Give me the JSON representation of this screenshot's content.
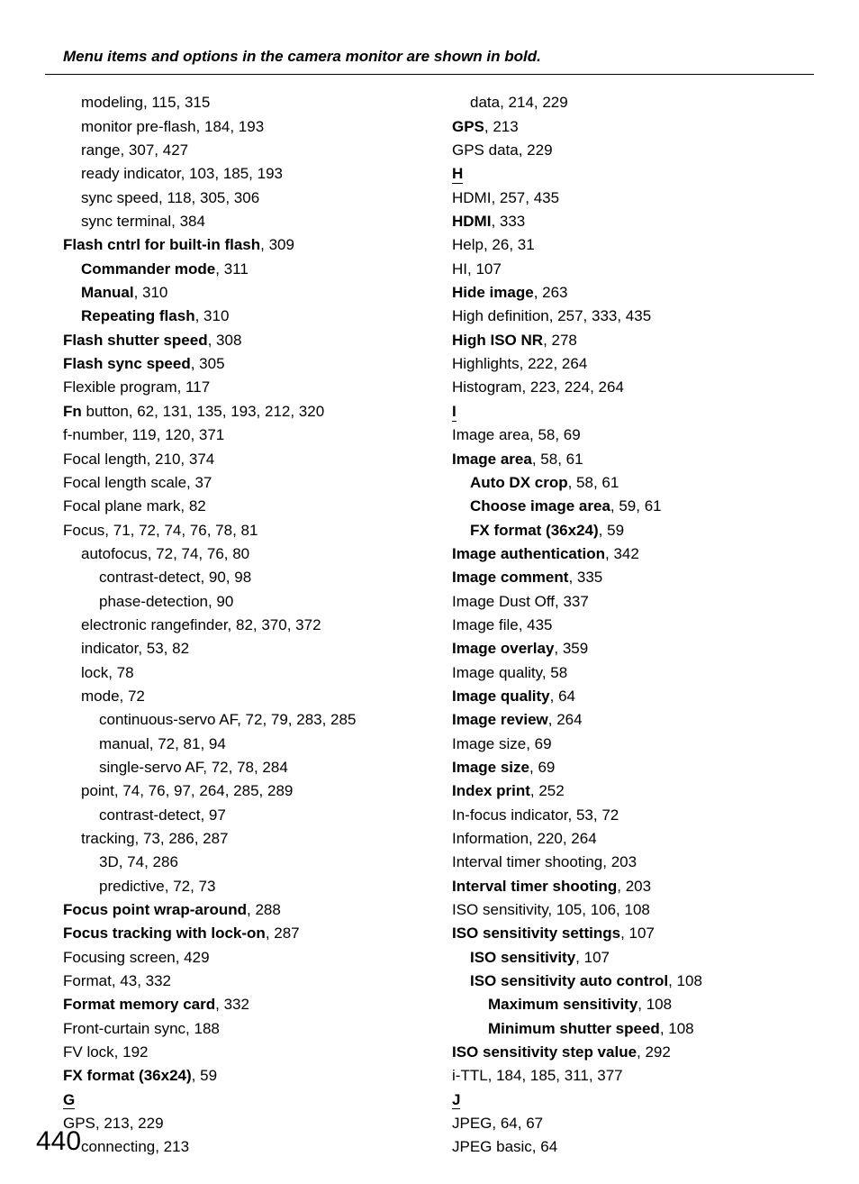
{
  "header_note": "Menu items and options in the camera monitor are shown in bold.",
  "page_number": "440",
  "left": [
    {
      "t": "modeling, 115, 315",
      "i": 1
    },
    {
      "t": "monitor pre-flash, 184, 193",
      "i": 1
    },
    {
      "t": "range, 307, 427",
      "i": 1
    },
    {
      "t": "ready indicator, 103, 185, 193",
      "i": 1
    },
    {
      "t": "sync speed, 118, 305, 306",
      "i": 1
    },
    {
      "t": "sync terminal, 384",
      "i": 1
    },
    {
      "pre": "Flash cntrl for built-in flash",
      "t": ", 309",
      "i": 0
    },
    {
      "pre": "Commander mode",
      "t": ", 311",
      "i": 1
    },
    {
      "pre": "Manual",
      "t": ", 310",
      "i": 1
    },
    {
      "pre": "Repeating flash",
      "t": ", 310",
      "i": 1
    },
    {
      "pre": "Flash shutter speed",
      "t": ", 308",
      "i": 0
    },
    {
      "pre": "Flash sync speed",
      "t": ", 305",
      "i": 0
    },
    {
      "t": "Flexible program, 117",
      "i": 0
    },
    {
      "fn": "Fn",
      "t": " button, 62, 131, 135, 193, 212, 320",
      "i": 0
    },
    {
      "t": "f-number, 119, 120, 371",
      "i": 0
    },
    {
      "t": "Focal length, 210, 374",
      "i": 0
    },
    {
      "t": "Focal length scale, 37",
      "i": 0
    },
    {
      "t": "Focal plane mark, 82",
      "i": 0
    },
    {
      "t": "Focus, 71, 72, 74, 76, 78, 81",
      "i": 0
    },
    {
      "t": "autofocus, 72, 74, 76, 80",
      "i": 1
    },
    {
      "t": "contrast-detect, 90, 98",
      "i": 2
    },
    {
      "t": "phase-detection, 90",
      "i": 2
    },
    {
      "t": "electronic rangefinder, 82, 370, 372",
      "i": 1
    },
    {
      "t": "indicator, 53, 82",
      "i": 1
    },
    {
      "t": "lock, 78",
      "i": 1
    },
    {
      "t": "mode, 72",
      "i": 1
    },
    {
      "t": "continuous-servo AF, 72, 79, 283, 285",
      "i": 2
    },
    {
      "t": "manual, 72, 81, 94",
      "i": 2
    },
    {
      "t": "single-servo AF, 72, 78, 284",
      "i": 2
    },
    {
      "t": "point, 74, 76, 97, 264, 285, 289",
      "i": 1
    },
    {
      "t": "contrast-detect, 97",
      "i": 2
    },
    {
      "t": "tracking, 73, 286, 287",
      "i": 1
    },
    {
      "t": "3D, 74, 286",
      "i": 2
    },
    {
      "t": "predictive, 72, 73",
      "i": 2
    },
    {
      "pre": "Focus point wrap-around",
      "t": ", 288",
      "i": 0
    },
    {
      "pre": "Focus tracking with lock-on",
      "t": ", 287",
      "i": 0
    },
    {
      "t": "Focusing screen, 429",
      "i": 0
    },
    {
      "t": "Format, 43, 332",
      "i": 0
    },
    {
      "pre": "Format memory card",
      "t": ", 332",
      "i": 0
    },
    {
      "t": "Front-curtain sync, 188",
      "i": 0
    },
    {
      "t": "FV lock, 192",
      "i": 0
    },
    {
      "pre": "FX format (36x24)",
      "t": ", 59",
      "i": 0
    },
    {
      "letter": "G"
    },
    {
      "t": "GPS, 213, 229",
      "i": 0
    },
    {
      "t": "connecting, 213",
      "i": 1
    }
  ],
  "right": [
    {
      "t": "data, 214, 229",
      "i": 1
    },
    {
      "pre": "GPS",
      "t": ", 213",
      "i": 0
    },
    {
      "t": "GPS data, 229",
      "i": 0
    },
    {
      "letter": "H"
    },
    {
      "t": "HDMI, 257, 435",
      "i": 0
    },
    {
      "pre": "HDMI",
      "t": ", 333",
      "i": 0
    },
    {
      "t": "Help, 26, 31",
      "i": 0
    },
    {
      "t": "HI, 107",
      "i": 0
    },
    {
      "pre": "Hide image",
      "t": ", 263",
      "i": 0
    },
    {
      "t": "High definition, 257, 333, 435",
      "i": 0
    },
    {
      "pre": "High ISO NR",
      "t": ", 278",
      "i": 0
    },
    {
      "t": "Highlights, 222, 264",
      "i": 0
    },
    {
      "t": "Histogram, 223, 224, 264",
      "i": 0
    },
    {
      "letter": "I"
    },
    {
      "t": "Image area, 58, 69",
      "i": 0
    },
    {
      "pre": "Image area",
      "t": ", 58, 61",
      "i": 0
    },
    {
      "pre": "Auto DX crop",
      "t": ", 58, 61",
      "i": 1
    },
    {
      "pre": "Choose image area",
      "t": ", 59, 61",
      "i": 1
    },
    {
      "pre": "FX format (36x24)",
      "t": ", 59",
      "i": 1
    },
    {
      "pre": "Image authentication",
      "t": ", 342",
      "i": 0
    },
    {
      "pre": "Image comment",
      "t": ", 335",
      "i": 0
    },
    {
      "t": "Image Dust Off, 337",
      "i": 0
    },
    {
      "t": "Image file, 435",
      "i": 0
    },
    {
      "pre": "Image overlay",
      "t": ", 359",
      "i": 0
    },
    {
      "t": "Image quality, 58",
      "i": 0
    },
    {
      "pre": "Image quality",
      "t": ", 64",
      "i": 0
    },
    {
      "pre": "Image review",
      "t": ", 264",
      "i": 0
    },
    {
      "t": "Image size, 69",
      "i": 0
    },
    {
      "pre": "Image size",
      "t": ", 69",
      "i": 0
    },
    {
      "pre": "Index print",
      "t": ", 252",
      "i": 0
    },
    {
      "t": "In-focus indicator, 53, 72",
      "i": 0
    },
    {
      "t": "Information, 220, 264",
      "i": 0
    },
    {
      "t": "Interval timer shooting, 203",
      "i": 0
    },
    {
      "pre": "Interval timer shooting",
      "t": ", 203",
      "i": 0
    },
    {
      "t": "ISO sensitivity, 105, 106, 108",
      "i": 0
    },
    {
      "pre": "ISO sensitivity settings",
      "t": ", 107",
      "i": 0
    },
    {
      "pre": "ISO sensitivity",
      "t": ", 107",
      "i": 1
    },
    {
      "pre": "ISO sensitivity auto control",
      "t": ", 108",
      "i": 1
    },
    {
      "pre": "Maximum sensitivity",
      "t": ", 108",
      "i": 2
    },
    {
      "pre": "Minimum shutter speed",
      "t": ", 108",
      "i": 2
    },
    {
      "pre": "ISO sensitivity step value",
      "t": ", 292",
      "i": 0
    },
    {
      "t": "i-TTL, 184, 185, 311, 377",
      "i": 0
    },
    {
      "letter": "J"
    },
    {
      "t": "JPEG, 64, 67",
      "i": 0
    },
    {
      "t": "JPEG basic, 64",
      "i": 0
    }
  ]
}
